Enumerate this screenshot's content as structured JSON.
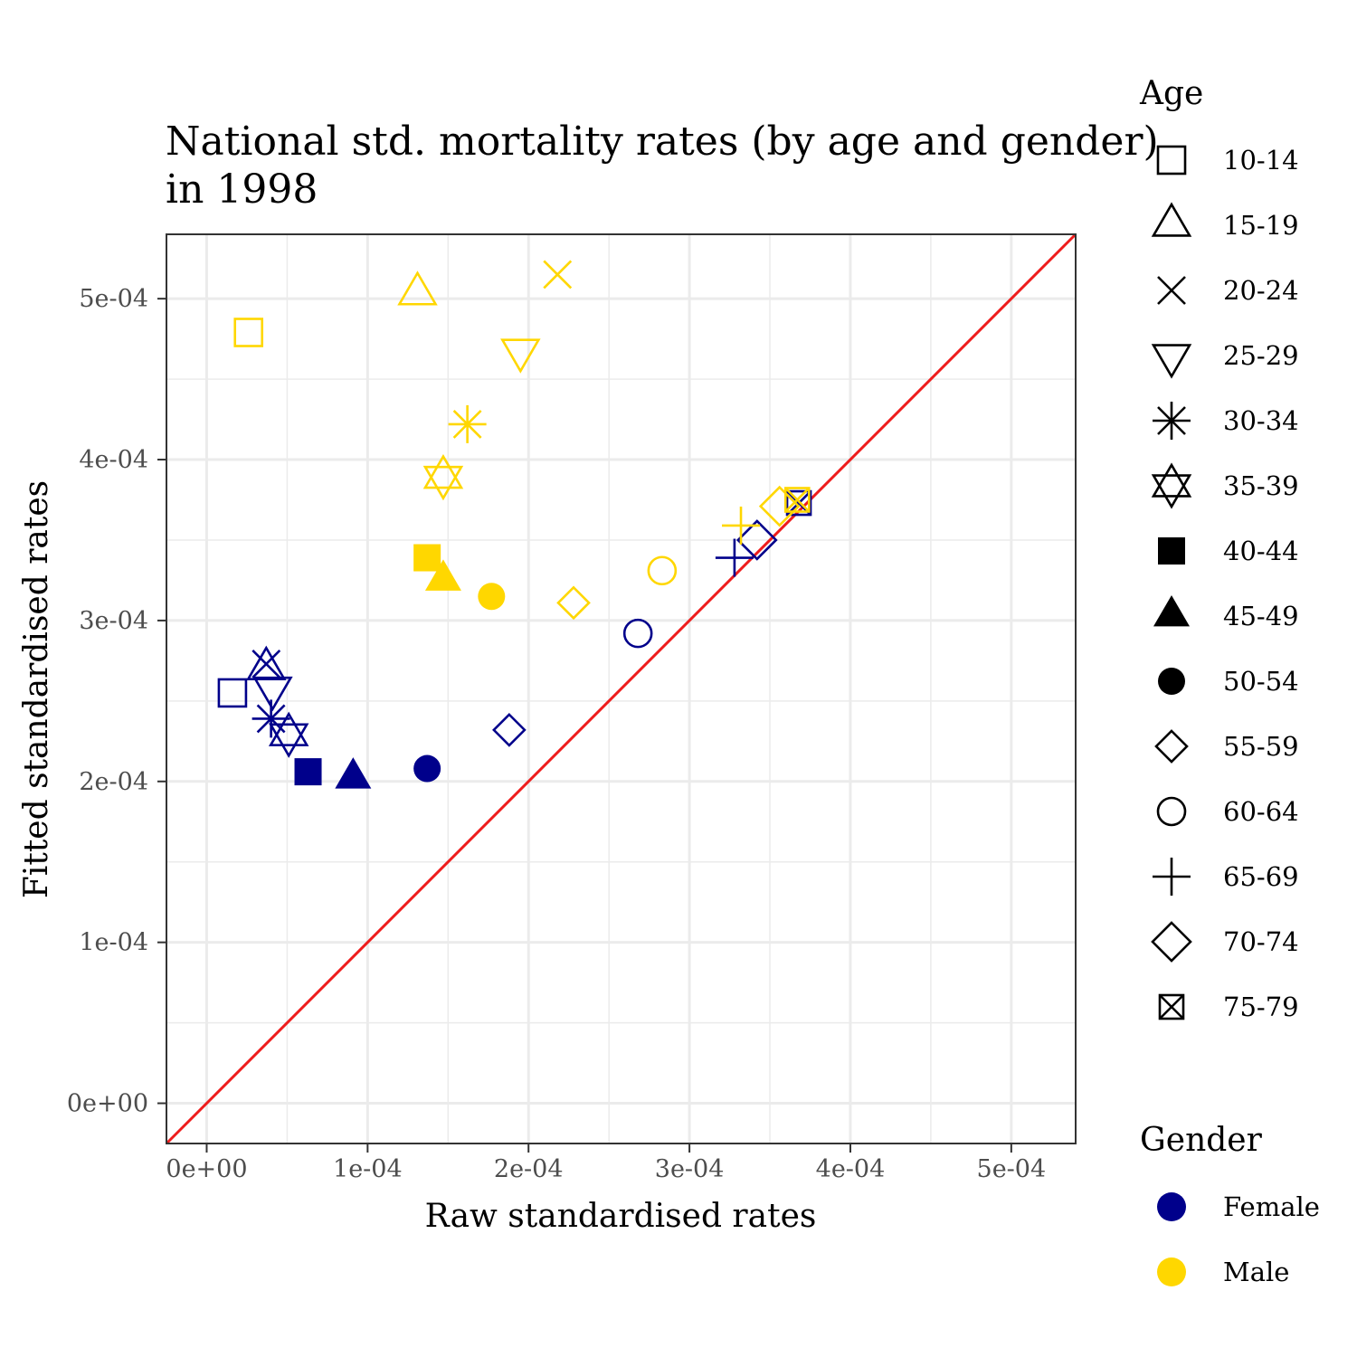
{
  "chart_data": {
    "type": "scatter",
    "title": "National std. mortality rates (by age and gender)",
    "subtitle": "in 1998",
    "xlabel": "Raw standardised rates",
    "ylabel": "Fitted standardised rates",
    "xlim": [
      -2.5e-05,
      0.00054
    ],
    "ylim": [
      -2.5e-05,
      0.00054
    ],
    "x_ticks": [
      0,
      0.0001,
      0.0002,
      0.0003,
      0.0004,
      0.0005
    ],
    "x_tick_labels": [
      "0e+00",
      "1e-04",
      "2e-04",
      "3e-04",
      "4e-04",
      "5e-04"
    ],
    "y_ticks": [
      0,
      0.0001,
      0.0002,
      0.0003,
      0.0004,
      0.0005
    ],
    "y_tick_labels": [
      "0e+00",
      "1e-04",
      "2e-04",
      "3e-04",
      "4e-04",
      "5e-04"
    ],
    "grid": true,
    "reference_line": {
      "type": "identity",
      "color": "#ee1c1c"
    },
    "legend_placement": "right",
    "age_legend": {
      "title": "Age",
      "items": [
        {
          "label": "10-14",
          "shape": "square-open"
        },
        {
          "label": "15-19",
          "shape": "triangle-open"
        },
        {
          "label": "20-24",
          "shape": "cross-x"
        },
        {
          "label": "25-29",
          "shape": "triangle-down-open"
        },
        {
          "label": "30-34",
          "shape": "asterisk"
        },
        {
          "label": "35-39",
          "shape": "star-of-david"
        },
        {
          "label": "40-44",
          "shape": "square-filled"
        },
        {
          "label": "45-49",
          "shape": "triangle-filled"
        },
        {
          "label": "50-54",
          "shape": "circle-filled"
        },
        {
          "label": "55-59",
          "shape": "diamond-open"
        },
        {
          "label": "60-64",
          "shape": "circle-open"
        },
        {
          "label": "65-69",
          "shape": "plus"
        },
        {
          "label": "70-74",
          "shape": "diamond-open-large"
        },
        {
          "label": "75-79",
          "shape": "square-x"
        }
      ]
    },
    "gender_legend": {
      "title": "Gender",
      "items": [
        {
          "label": "Female",
          "color": "#00008b"
        },
        {
          "label": "Male",
          "color": "#ffd700"
        }
      ]
    },
    "series": [
      {
        "name": "Female",
        "color": "#00008b",
        "points": [
          {
            "age": "10-14",
            "x": 1.6e-05,
            "y": 0.000255
          },
          {
            "age": "15-19",
            "x": 3.7e-05,
            "y": 0.00027
          },
          {
            "age": "20-24",
            "x": 3.7e-05,
            "y": 0.000273
          },
          {
            "age": "25-29",
            "x": 4.1e-05,
            "y": 0.000258
          },
          {
            "age": "30-34",
            "x": 4e-05,
            "y": 0.000239
          },
          {
            "age": "35-39",
            "x": 5.1e-05,
            "y": 0.000229
          },
          {
            "age": "40-44",
            "x": 6.3e-05,
            "y": 0.000206
          },
          {
            "age": "45-49",
            "x": 9.1e-05,
            "y": 0.000202
          },
          {
            "age": "50-54",
            "x": 0.000137,
            "y": 0.000208
          },
          {
            "age": "55-59",
            "x": 0.000188,
            "y": 0.000232
          },
          {
            "age": "60-64",
            "x": 0.000268,
            "y": 0.000292
          },
          {
            "age": "65-69",
            "x": 0.000328,
            "y": 0.000339
          },
          {
            "age": "70-74",
            "x": 0.000342,
            "y": 0.00035
          },
          {
            "age": "75-79",
            "x": 0.000368,
            "y": 0.000373
          }
        ]
      },
      {
        "name": "Male",
        "color": "#ffd700",
        "points": [
          {
            "age": "10-14",
            "x": 2.6e-05,
            "y": 0.000479
          },
          {
            "age": "15-19",
            "x": 0.000131,
            "y": 0.000503
          },
          {
            "age": "20-24",
            "x": 0.000218,
            "y": 0.000515
          },
          {
            "age": "25-29",
            "x": 0.000195,
            "y": 0.000468
          },
          {
            "age": "30-34",
            "x": 0.000162,
            "y": 0.000422
          },
          {
            "age": "35-39",
            "x": 0.000147,
            "y": 0.000389
          },
          {
            "age": "40-44",
            "x": 0.000137,
            "y": 0.000339
          },
          {
            "age": "45-49",
            "x": 0.000147,
            "y": 0.000325
          },
          {
            "age": "50-54",
            "x": 0.000177,
            "y": 0.000315
          },
          {
            "age": "55-59",
            "x": 0.000228,
            "y": 0.000311
          },
          {
            "age": "60-64",
            "x": 0.000283,
            "y": 0.000331
          },
          {
            "age": "65-69",
            "x": 0.000332,
            "y": 0.000359
          },
          {
            "age": "70-74",
            "x": 0.000356,
            "y": 0.000371
          },
          {
            "age": "75-79",
            "x": 0.000367,
            "y": 0.000375
          }
        ]
      }
    ]
  }
}
